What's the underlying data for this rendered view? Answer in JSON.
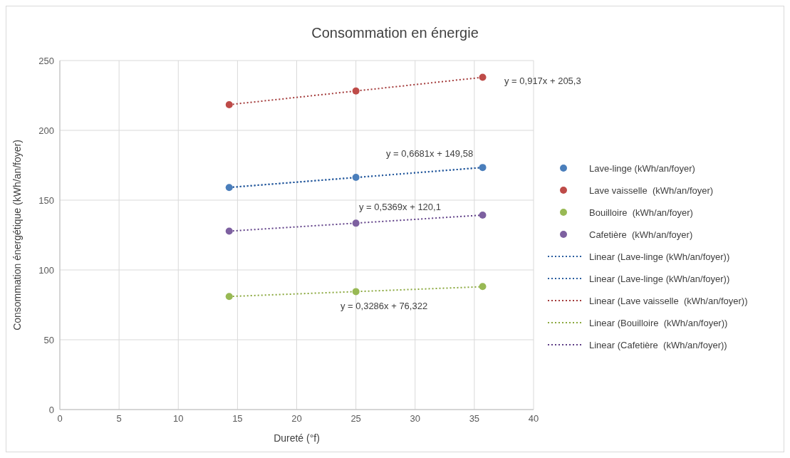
{
  "chart_data": {
    "type": "scatter",
    "title": "Consommation en énergie",
    "xlabel": "Dureté (°f)",
    "ylabel": "Consommation énergétique (kWh/an/foyer)",
    "xlim": [
      0,
      40
    ],
    "xticks": [
      0,
      5,
      10,
      15,
      20,
      25,
      30,
      35,
      40
    ],
    "ylim": [
      0,
      250
    ],
    "yticks": [
      0,
      50,
      100,
      150,
      200,
      250
    ],
    "grid": true,
    "legend": "right",
    "marker": "circle",
    "series": [
      {
        "name": "Lave-linge (kWh/an/foyer)",
        "color": "#4a7ebb",
        "x": [
          14.3,
          25,
          35.7
        ],
        "values": [
          159.1,
          166.3,
          173.4
        ]
      },
      {
        "name": "Lave vaisselle  (kWh/an/foyer)",
        "color": "#be4b48",
        "x": [
          14.3,
          25,
          35.7
        ],
        "values": [
          218.4,
          228.2,
          238.0
        ]
      },
      {
        "name": "Bouilloire  (kWh/an/foyer)",
        "color": "#98b954",
        "x": [
          14.3,
          25,
          35.7
        ],
        "values": [
          81.0,
          84.5,
          88.1
        ]
      },
      {
        "name": "Cafetière  (kWh/an/foyer)",
        "color": "#7d60a0",
        "x": [
          14.3,
          25,
          35.7
        ],
        "values": [
          127.8,
          133.5,
          139.3
        ]
      },
      {
        "type": "line",
        "name": "Linear (Lave-linge (kWh/an/foyer))",
        "color": "#2a5d9f",
        "line_style": "dotted",
        "marker": "none",
        "x": [
          14.3,
          35.7
        ],
        "values": [
          159.1,
          173.4
        ]
      },
      {
        "type": "line",
        "name": "Linear (Lave-linge (kWh/an/foyer))",
        "color": "#2a5d9f",
        "line_style": "dotted",
        "marker": "none",
        "x": [
          14.3,
          35.7
        ],
        "values": [
          159.1,
          173.4
        ]
      },
      {
        "type": "line",
        "name": "Linear (Lave vaisselle  (kWh/an/foyer))",
        "color": "#a33a3a",
        "line_style": "dotted",
        "marker": "none",
        "x": [
          14.3,
          35.7
        ],
        "values": [
          218.4,
          238.0
        ]
      },
      {
        "type": "line",
        "name": "Linear (Bouilloire  (kWh/an/foyer))",
        "color": "#8aa83e",
        "line_style": "dotted",
        "marker": "none",
        "x": [
          14.3,
          35.7
        ],
        "values": [
          81.0,
          88.0
        ]
      },
      {
        "type": "line",
        "name": "Linear (Cafetière  (kWh/an/foyer))",
        "color": "#5f3f87",
        "line_style": "dotted",
        "marker": "none",
        "x": [
          14.3,
          35.7
        ],
        "values": [
          127.8,
          139.3
        ]
      }
    ],
    "annotations": [
      "y = 0,917x + 205,3",
      "y = 0,6681x + 149,58",
      "y = 0,5369x + 120,1",
      "y = 0,3286x + 76,322"
    ]
  }
}
